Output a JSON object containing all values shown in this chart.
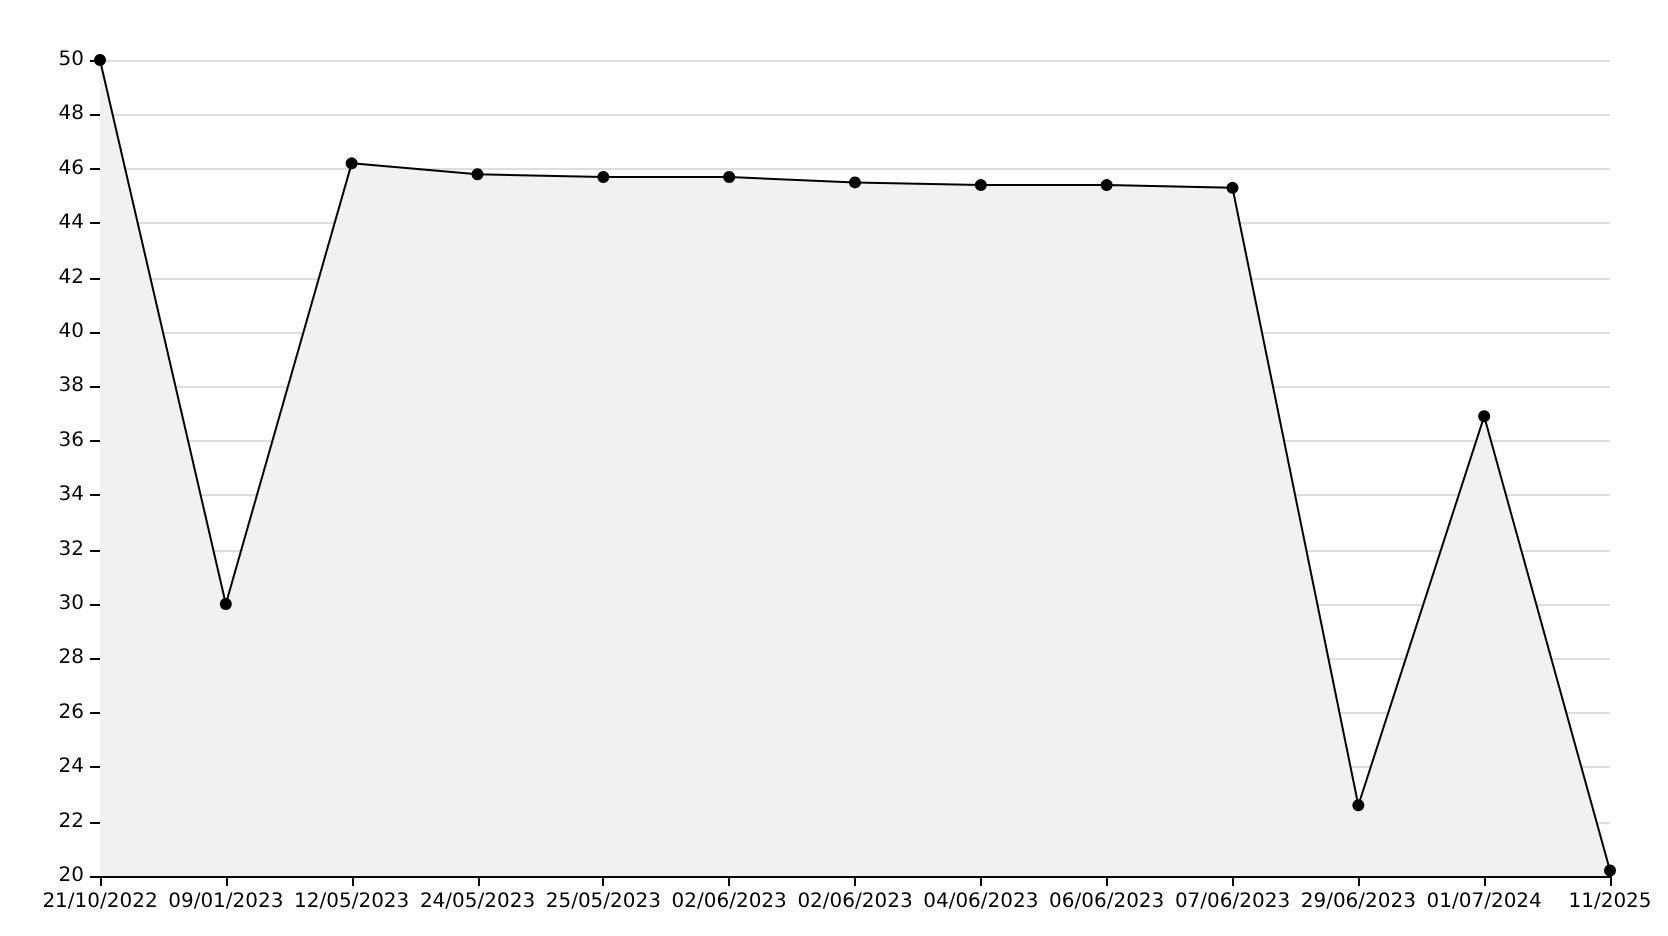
{
  "chart_data": {
    "type": "area",
    "categories": [
      "21/10/2022",
      "09/01/2023",
      "12/05/2023",
      "24/05/2023",
      "25/05/2023",
      "02/06/2023",
      "02/06/2023",
      "04/06/2023",
      "06/06/2023",
      "07/06/2023",
      "29/06/2023",
      "01/07/2024",
      "11/2025"
    ],
    "series": [
      {
        "color": "#000000",
        "values": [
          50,
          30,
          46.2,
          45.8,
          45.7,
          45.7,
          45.5,
          45.4,
          45.4,
          45.3,
          22.6,
          36.9,
          20.2
        ]
      }
    ],
    "ylim": [
      20,
      50
    ],
    "yticks": [
      20,
      22,
      24,
      26,
      28,
      30,
      32,
      34,
      36,
      38,
      40,
      42,
      44,
      46,
      48,
      50
    ],
    "grid": "y",
    "marker": "circle",
    "line_style": "solid"
  }
}
